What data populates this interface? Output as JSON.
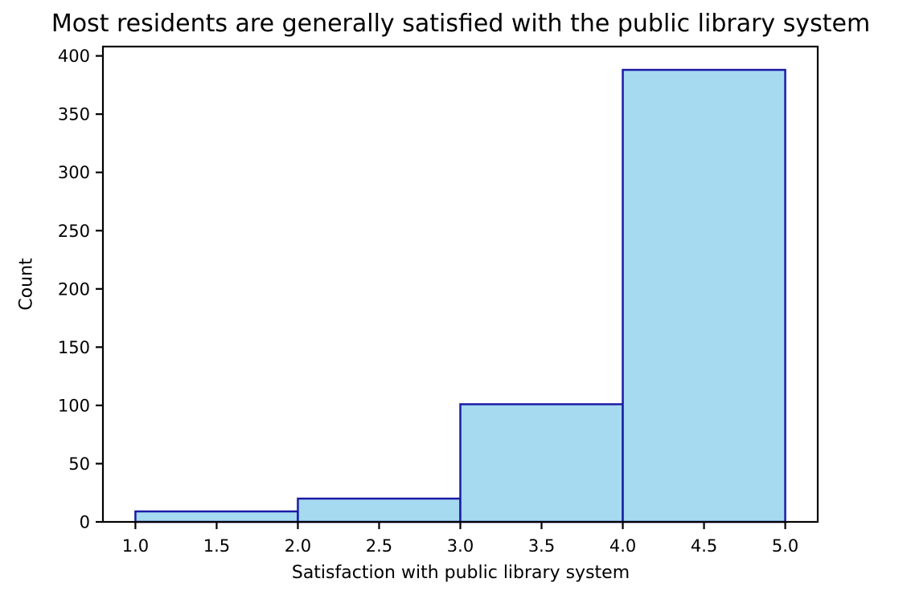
{
  "chart_data": {
    "type": "bar",
    "subtype": "histogram",
    "title": "Most residents are generally satisfied with the public library system",
    "xlabel": "Satisfaction with public library system",
    "ylabel": "Count",
    "bin_edges": [
      1.0,
      2.0,
      3.0,
      4.0,
      5.0
    ],
    "counts": [
      9,
      20,
      101,
      388
    ],
    "xlim": [
      0.8,
      5.2
    ],
    "ylim": [
      0,
      408
    ],
    "xticks": {
      "values": [
        1.0,
        1.5,
        2.0,
        2.5,
        3.0,
        3.5,
        4.0,
        4.5,
        5.0
      ],
      "labels": [
        "1.0",
        "1.5",
        "2.0",
        "2.5",
        "3.0",
        "3.5",
        "4.0",
        "4.5",
        "5.0"
      ]
    },
    "yticks": {
      "values": [
        0,
        50,
        100,
        150,
        200,
        250,
        300,
        350,
        400
      ],
      "labels": [
        "0",
        "50",
        "100",
        "150",
        "200",
        "250",
        "300",
        "350",
        "400"
      ]
    },
    "grid": false,
    "legend_position": "none",
    "colors": {
      "bar_fill": "#a5daf0",
      "bar_edge": "#1b1ba6",
      "spine": "#000000",
      "tick": "#000000",
      "text": "#000000",
      "background": "#ffffff"
    }
  }
}
